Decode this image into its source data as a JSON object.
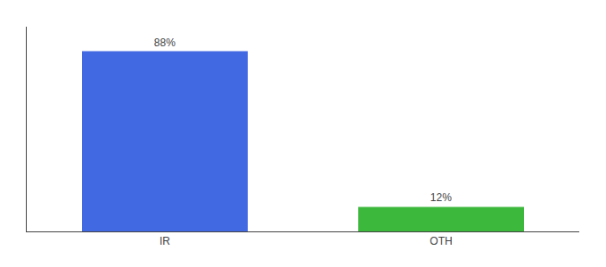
{
  "chart_data": {
    "type": "bar",
    "categories": [
      "IR",
      "OTH"
    ],
    "values": [
      88,
      12
    ],
    "value_labels": [
      "88%",
      "12%"
    ],
    "colors": [
      "#4169e1",
      "#3cb83c"
    ],
    "ylim": [
      0,
      100
    ],
    "grid": false,
    "data_labels": true,
    "tick_labels": "x"
  }
}
